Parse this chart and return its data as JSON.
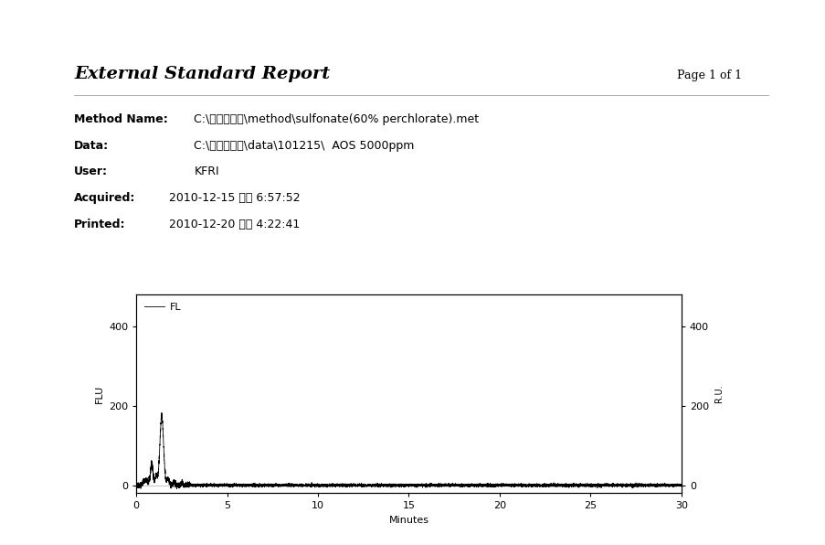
{
  "title": "External Standard Report",
  "page": "Page 1 of 1",
  "header_lines": [
    [
      "Method Name:",
      "C:\\계면활성제\\method\\sulfonate(60% perchlorate).met"
    ],
    [
      "Data:",
      "C:\\계면활성제\\data\\101215\\  AOS 5000ppm"
    ],
    [
      "User:",
      "KFRI"
    ],
    [
      "Acquired:",
      "2010-12-15 오후 6:57:52"
    ],
    [
      "Printed:",
      "2010-12-20 오후 4:22:41"
    ]
  ],
  "xlabel": "Minutes",
  "ylabel_left": "FLU",
  "ylabel_right": "R.U.",
  "xlim": [
    0,
    30
  ],
  "ylim": [
    -20,
    480
  ],
  "xticks": [
    0,
    5,
    10,
    15,
    20,
    25,
    30
  ],
  "yticks": [
    0,
    200,
    400
  ],
  "legend_label": "FL",
  "background_color": "#ffffff",
  "line_color": "#000000",
  "peak_x": 1.4,
  "peak_height": 175,
  "noise_amplitude": 3.0
}
